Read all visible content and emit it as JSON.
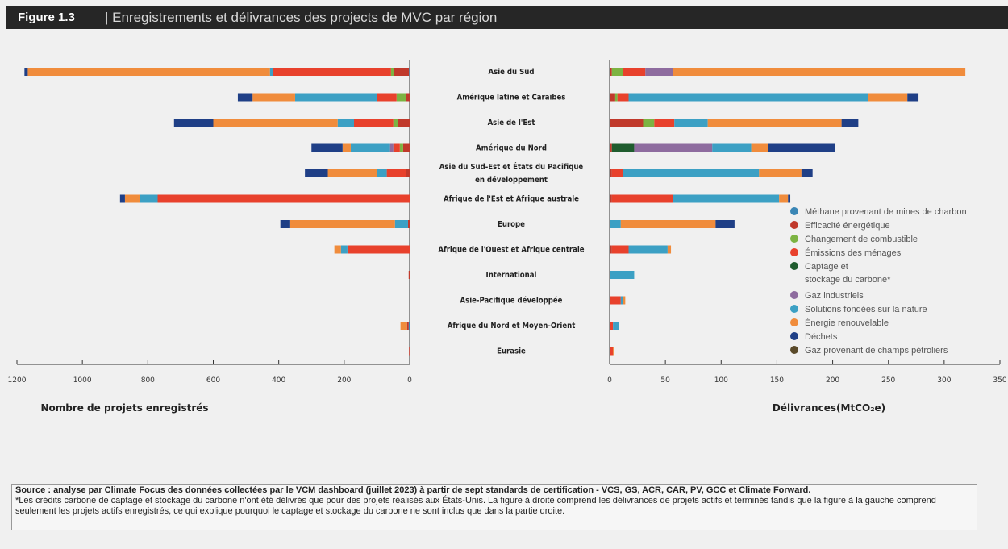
{
  "figure": {
    "label": "Figure 1.3",
    "title": "| Enregistrements et délivrances des projects de MVC par région"
  },
  "source": {
    "bold": "Source : analyse par Climate Focus des données collectées par le VCM dashboard (juillet 2023) à partir de sept standards de certification - VCS, GS, ACR, CAR, PV, GCC et Climate Forward.",
    "note": "*Les crédits carbone de captage et stockage du carbone n'ont été délivrés que pour des projets réalisés aux États-Unis. La figure à droite comprend les délivrances de projets actifs et terminés tandis que la figure à la gauche comprend seulement les projets  actifs enregistrés, ce qui explique pourquoi le captage et stockage du carbone ne sont inclus que dans la partie droite."
  },
  "chart_data": {
    "type": "bar",
    "orientation": "horizontal",
    "stacked": true,
    "categories": [
      "Asie du Sud",
      "Amérique latine et Caraïbes",
      "Asie de l'Est",
      "Amérique du Nord",
      "Asie du Sud-Est et États du Pacifique en développement",
      "Afrique de l'Est et Afrique australe",
      "Europe",
      "Afrique de l'Ouest et Afrique centrale",
      "International",
      "Asie-Pacifique développée",
      "Afrique du Nord et Moyen-Orient",
      "Eurasie"
    ],
    "series_names": [
      "Méthane provenant de mines de charbon",
      "Efficacité énergétique",
      "Changement de combustible",
      "Émissions des ménages",
      "Captage et stockage du carbone*",
      "Gaz industriels",
      "Solutions fondées sur la nature",
      "Énergie renouvelable",
      "Déchets",
      "Gaz provenant de champs pétroliers"
    ],
    "colors": [
      "#3a86b5",
      "#c0392b",
      "#7cb342",
      "#e8412c",
      "#1f5c2e",
      "#8e6c9f",
      "#3ca0c4",
      "#f08c3c",
      "#1f3f86",
      "#5a4a2a"
    ],
    "charts": [
      {
        "xlabel": "Nombre de projets enregistrés",
        "xlim": [
          1200,
          0
        ],
        "ticks": [
          1200,
          1000,
          800,
          600,
          400,
          200,
          0
        ],
        "series": [
          {
            "name": "Méthane provenant de mines de charbon",
            "values": [
              2,
              0,
              0,
              0,
              0,
              0,
              0,
              0,
              0,
              0,
              3,
              0
            ]
          },
          {
            "name": "Efficacité énergétique",
            "values": [
              45,
              10,
              35,
              20,
              10,
              0,
              5,
              0,
              3,
              0,
              5,
              2
            ]
          },
          {
            "name": "Changement de combustible",
            "values": [
              10,
              30,
              15,
              10,
              0,
              0,
              0,
              0,
              0,
              0,
              0,
              0
            ]
          },
          {
            "name": "Émissions des ménages",
            "values": [
              360,
              60,
              120,
              20,
              60,
              770,
              0,
              190,
              0,
              0,
              0,
              0
            ]
          },
          {
            "name": "Captage et stockage du carbone*",
            "values": [
              0,
              0,
              0,
              0,
              0,
              0,
              0,
              0,
              0,
              0,
              0,
              0
            ]
          },
          {
            "name": "Gaz industriels",
            "values": [
              0,
              0,
              0,
              10,
              0,
              0,
              0,
              0,
              0,
              0,
              0,
              0
            ]
          },
          {
            "name": "Solutions fondées sur la nature",
            "values": [
              10,
              250,
              50,
              120,
              30,
              55,
              40,
              20,
              0,
              0,
              0,
              0
            ]
          },
          {
            "name": "Énergie renouvelable",
            "values": [
              740,
              130,
              380,
              25,
              150,
              45,
              320,
              20,
              0,
              0,
              20,
              0
            ]
          },
          {
            "name": "Déchets",
            "values": [
              10,
              45,
              120,
              95,
              70,
              15,
              30,
              0,
              0,
              0,
              0,
              0
            ]
          },
          {
            "name": "Gaz provenant de champs pétroliers",
            "values": [
              0,
              0,
              0,
              0,
              0,
              0,
              0,
              0,
              0,
              0,
              0,
              0
            ]
          }
        ]
      },
      {
        "xlabel": "Délivrances(MtCO₂e)",
        "xlim": [
          0,
          350
        ],
        "ticks": [
          0,
          50,
          100,
          150,
          200,
          250,
          300,
          350
        ],
        "series": [
          {
            "name": "Méthane provenant de mines de charbon",
            "values": [
              0,
              0,
              0,
              0,
              0,
              0,
              0,
              0,
              0,
              0,
              0,
              0
            ]
          },
          {
            "name": "Efficacité énergétique",
            "values": [
              2,
              5,
              30,
              2,
              2,
              2,
              0,
              2,
              0,
              0,
              0,
              0
            ]
          },
          {
            "name": "Changement de combustible",
            "values": [
              10,
              2,
              10,
              0,
              0,
              0,
              0,
              0,
              0,
              0,
              0,
              0
            ]
          },
          {
            "name": "Émissions des ménages",
            "values": [
              20,
              10,
              18,
              0,
              10,
              55,
              0,
              15,
              0,
              10,
              3,
              3
            ]
          },
          {
            "name": "Captage et stockage du carbone*",
            "values": [
              0,
              0,
              0,
              20,
              0,
              0,
              0,
              0,
              0,
              0,
              0,
              0
            ]
          },
          {
            "name": "Gaz industriels",
            "values": [
              25,
              0,
              0,
              70,
              0,
              0,
              0,
              0,
              0,
              0,
              0,
              0
            ]
          },
          {
            "name": "Solutions fondées sur la nature",
            "values": [
              0,
              215,
              30,
              35,
              122,
              95,
              10,
              35,
              22,
              2,
              5,
              0
            ]
          },
          {
            "name": "Énergie renouvelable",
            "values": [
              262,
              35,
              120,
              15,
              38,
              8,
              85,
              3,
              0,
              2,
              0,
              1
            ]
          },
          {
            "name": "Déchets",
            "values": [
              0,
              10,
              15,
              60,
              10,
              2,
              17,
              0,
              0,
              0,
              0,
              0
            ]
          },
          {
            "name": "Gaz provenant de champs pétroliers",
            "values": [
              0,
              0,
              0,
              0,
              0,
              0,
              0,
              0,
              0,
              0,
              0,
              0
            ]
          }
        ]
      }
    ]
  }
}
